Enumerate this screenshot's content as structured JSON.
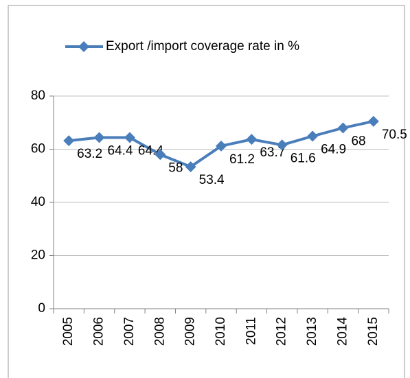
{
  "chart_data": {
    "type": "line",
    "categories": [
      "2005",
      "2006",
      "2007",
      "2008",
      "2009",
      "2010",
      "2011",
      "2012",
      "2013",
      "2014",
      "2015"
    ],
    "series": [
      {
        "name": "Export /import coverage rate in %",
        "color": "#4a7ebb",
        "values": [
          63.2,
          64.4,
          64.4,
          58,
          53.4,
          61.2,
          63.7,
          61.6,
          64.9,
          68,
          70.5
        ]
      }
    ],
    "ylim": [
      0,
      80
    ],
    "yticks": [
      0,
      20,
      40,
      60,
      80
    ],
    "grid": true,
    "legend": "top"
  }
}
